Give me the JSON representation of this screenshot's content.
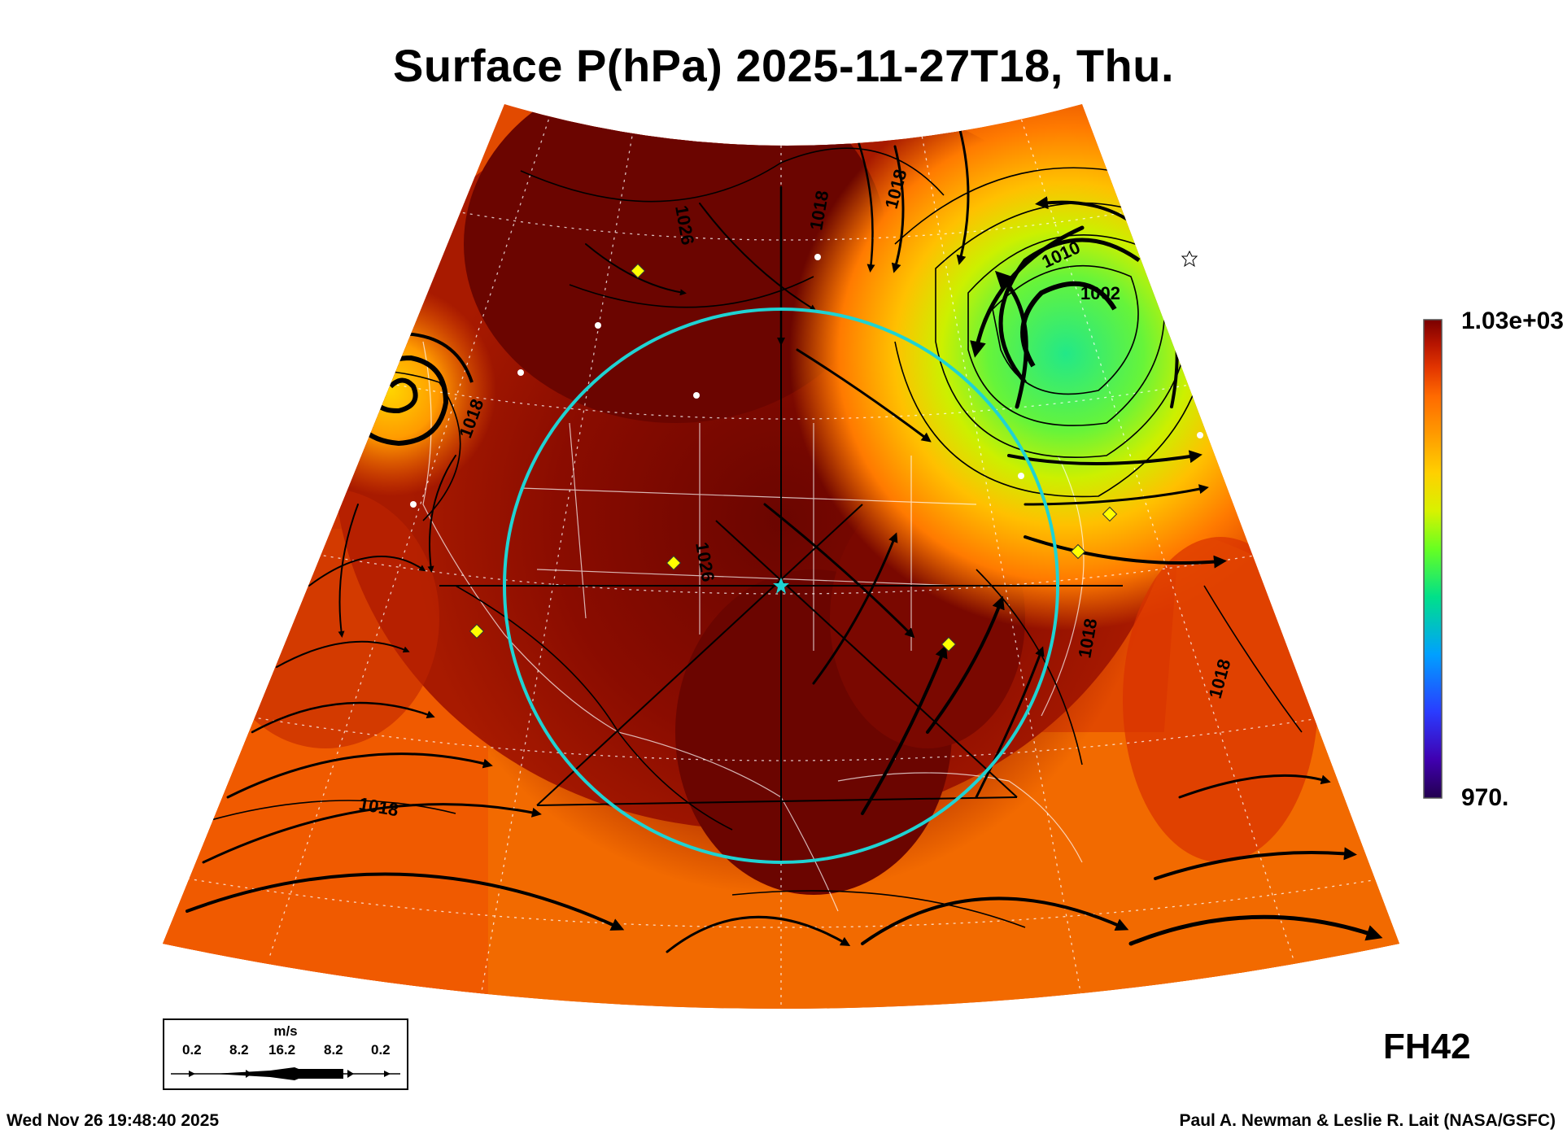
{
  "title": "Surface P(hPa) 2025-11-27T18, Thu.",
  "colorbar": {
    "max_label": "1.03e+03",
    "min_label": "970.",
    "max_value": 1030,
    "min_value": 970,
    "colors": [
      "#fff2ff",
      "#7a0000",
      "#b61400",
      "#e23500",
      "#ff6a00",
      "#ff9b00",
      "#ffd000",
      "#d8f200",
      "#66ff22",
      "#00e08a",
      "#00a0ff",
      "#2a3cff",
      "#4000b0",
      "#23004f"
    ]
  },
  "forecast_hour": "FH42",
  "wind_legend": {
    "unit": "m/s",
    "ticks": [
      "0.2",
      "8.2",
      "16.2",
      "8.2",
      "0.2"
    ]
  },
  "footer": {
    "timestamp": "Wed Nov 26 19:48:40 2025",
    "credit": "Paul A. Newman & Leslie R. Lait (NASA/GSFC)"
  },
  "contour_labels": [
    "1018",
    "1010",
    "1002",
    "1026",
    "1018",
    "1018",
    "1018",
    "1018",
    "1026",
    "1018"
  ],
  "map_colors": {
    "high": "#6b0500",
    "mid": "#c42a00",
    "low": "#f25a00",
    "trough": "#ffb000",
    "cyclone_core": "#33ee66",
    "ring": "#1fd3d3"
  }
}
